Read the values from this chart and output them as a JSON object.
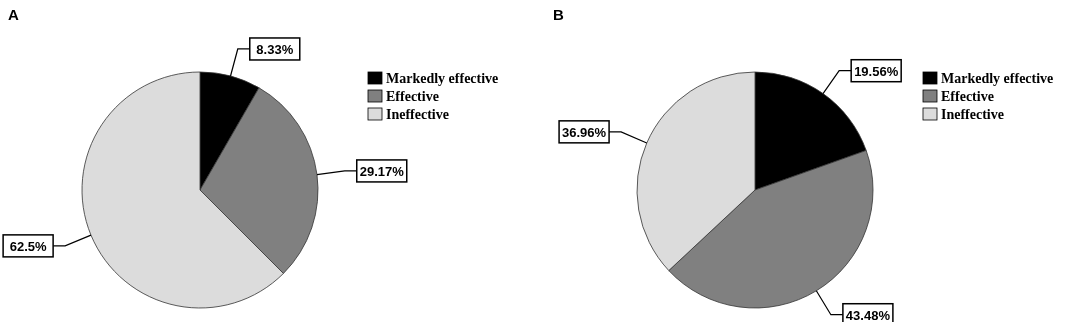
{
  "chart_data": [
    {
      "type": "pie",
      "title": "A",
      "categories": [
        "Markedly effective",
        "Effective",
        "Ineffective"
      ],
      "values": [
        8.33,
        29.17,
        62.5
      ],
      "colors": [
        "#000000",
        "#808080",
        "#dcdcdc"
      ],
      "value_labels": [
        "8.33%",
        "29.17%",
        "62.5%"
      ],
      "legend": "right"
    },
    {
      "type": "pie",
      "title": "B",
      "categories": [
        "Markedly effective",
        "Effective",
        "Ineffective"
      ],
      "values": [
        19.56,
        43.48,
        36.96
      ],
      "colors": [
        "#000000",
        "#808080",
        "#dcdcdc"
      ],
      "value_labels": [
        "19.56%",
        "43.48%",
        "36.96%"
      ],
      "legend": "right"
    }
  ]
}
